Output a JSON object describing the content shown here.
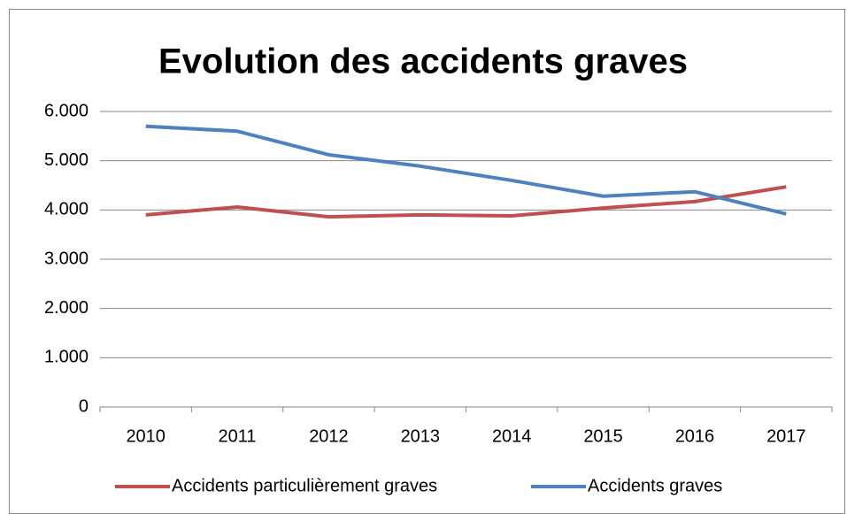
{
  "chart_data": {
    "type": "line",
    "title": "Evolution des accidents graves",
    "categories": [
      "2010",
      "2011",
      "2012",
      "2013",
      "2014",
      "2015",
      "2016",
      "2017"
    ],
    "series": [
      {
        "name": "Accidents particulièrement graves",
        "color": "#c0504d",
        "values": [
          3900,
          4060,
          3860,
          3900,
          3880,
          4040,
          4170,
          4470
        ]
      },
      {
        "name": "Accidents graves",
        "color": "#4f81bd",
        "values": [
          5700,
          5600,
          5120,
          4890,
          4600,
          4280,
          4370,
          3920
        ]
      }
    ],
    "ylim": [
      0,
      6000
    ],
    "yticks": [
      0,
      {
        "value": 1000,
        "label": "1.000"
      },
      {
        "value": 2000,
        "label": "2.000"
      },
      {
        "value": 3000,
        "label": "3.000"
      },
      {
        "value": 4000,
        "label": "4.000"
      },
      {
        "value": 5000,
        "label": "5.000"
      },
      {
        "value": 6000,
        "label": "6.000"
      }
    ],
    "grid": true,
    "legend": "bottom"
  }
}
